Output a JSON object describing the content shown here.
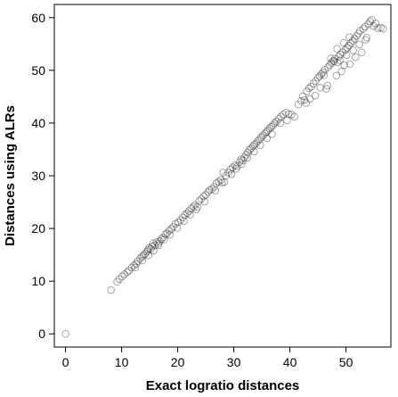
{
  "chart_data": {
    "type": "scatter",
    "title": "",
    "xlabel": "Exact logratio distances",
    "ylabel": "Distances using ALRs",
    "xlim": [
      -2,
      58
    ],
    "ylim": [
      -2.5,
      62.5
    ],
    "x_ticks": [
      0,
      10,
      20,
      30,
      40,
      50
    ],
    "y_ticks": [
      0,
      10,
      20,
      30,
      40,
      50,
      60
    ],
    "grid": false,
    "legend": "none",
    "marker": "open-circle",
    "marker_color": "#000000",
    "marker_opacity": 0.35,
    "approximate_relation": "y ≈ 1.05 · x",
    "points": [
      [
        0,
        0
      ],
      [
        8.1,
        8.3
      ],
      [
        9.2,
        9.9
      ],
      [
        9.6,
        10.4
      ],
      [
        10.1,
        10.9
      ],
      [
        10.5,
        11.3
      ],
      [
        11.0,
        11.7
      ],
      [
        11.3,
        12.0
      ],
      [
        11.8,
        12.6
      ],
      [
        12.2,
        13.0
      ],
      [
        12.6,
        13.3
      ],
      [
        12.9,
        13.8
      ],
      [
        13.3,
        14.3
      ],
      [
        13.6,
        14.6
      ],
      [
        13.9,
        14.9
      ],
      [
        14.2,
        15.2
      ],
      [
        14.5,
        15.6
      ],
      [
        14.7,
        15.9
      ],
      [
        14.9,
        16.3
      ],
      [
        15.2,
        16.1
      ],
      [
        15.4,
        16.6
      ],
      [
        15.6,
        17.2
      ],
      [
        15.9,
        16.8
      ],
      [
        16.2,
        17.4
      ],
      [
        16.5,
        17.1
      ],
      [
        16.8,
        17.6
      ],
      [
        17.1,
        18.0
      ],
      [
        17.4,
        18.3
      ],
      [
        17.8,
        18.9
      ],
      [
        18.1,
        19.1
      ],
      [
        18.5,
        19.6
      ],
      [
        18.9,
        19.9
      ],
      [
        19.2,
        20.3
      ],
      [
        19.6,
        20.9
      ],
      [
        20.1,
        21.2
      ],
      [
        20.5,
        21.6
      ],
      [
        20.9,
        22.1
      ],
      [
        21.3,
        22.6
      ],
      [
        21.7,
        22.9
      ],
      [
        22.0,
        23.3
      ],
      [
        22.4,
        23.8
      ],
      [
        22.8,
        24.1
      ],
      [
        23.1,
        24.5
      ],
      [
        23.5,
        24.1
      ],
      [
        23.8,
        25.2
      ],
      [
        24.2,
        25.6
      ],
      [
        24.6,
        26.1
      ],
      [
        25.0,
        26.4
      ],
      [
        25.4,
        26.9
      ],
      [
        25.7,
        27.3
      ],
      [
        26.1,
        27.5
      ],
      [
        26.5,
        27.9
      ],
      [
        26.9,
        28.6
      ],
      [
        27.3,
        28.9
      ],
      [
        27.7,
        29.2
      ],
      [
        28.1,
        30.6
      ],
      [
        28.3,
        28.8
      ],
      [
        28.6,
        30.0
      ],
      [
        29.0,
        30.6
      ],
      [
        29.4,
        31.2
      ],
      [
        29.8,
        31.6
      ],
      [
        30.2,
        32.0
      ],
      [
        30.6,
        31.8
      ],
      [
        31.0,
        32.6
      ],
      [
        31.3,
        33.1
      ],
      [
        31.6,
        32.9
      ],
      [
        31.9,
        33.5
      ],
      [
        32.2,
        34.0
      ],
      [
        32.5,
        34.4
      ],
      [
        32.8,
        34.9
      ],
      [
        33.1,
        35.2
      ],
      [
        33.4,
        35.6
      ],
      [
        33.7,
        35.9
      ],
      [
        34.0,
        36.2
      ],
      [
        34.3,
        36.6
      ],
      [
        34.6,
        36.9
      ],
      [
        34.9,
        37.3
      ],
      [
        35.2,
        37.6
      ],
      [
        35.5,
        38.0
      ],
      [
        35.8,
        38.3
      ],
      [
        36.1,
        38.6
      ],
      [
        36.4,
        39.0
      ],
      [
        36.7,
        39.3
      ],
      [
        37.0,
        39.6
      ],
      [
        37.3,
        40.0
      ],
      [
        37.6,
        40.3
      ],
      [
        38.0,
        40.8
      ],
      [
        38.4,
        41.2
      ],
      [
        38.8,
        41.6
      ],
      [
        39.3,
        42.0
      ],
      [
        39.8,
        41.7
      ],
      [
        40.3,
        41.6
      ],
      [
        40.8,
        41.2
      ],
      [
        41.5,
        43.5
      ],
      [
        42.0,
        44.2
      ],
      [
        42.3,
        45.1
      ],
      [
        42.6,
        44.4
      ],
      [
        43.0,
        46.0
      ],
      [
        43.4,
        46.6
      ],
      [
        43.8,
        46.9
      ],
      [
        44.2,
        47.5
      ],
      [
        44.6,
        48.0
      ],
      [
        45.0,
        48.6
      ],
      [
        45.3,
        48.9
      ],
      [
        45.6,
        49.3
      ],
      [
        45.9,
        49.6
      ],
      [
        46.2,
        50.1
      ],
      [
        46.5,
        46.5
      ],
      [
        46.7,
        47.1
      ],
      [
        46.8,
        50.6
      ],
      [
        47.1,
        51.0
      ],
      [
        47.4,
        51.4
      ],
      [
        47.7,
        51.8
      ],
      [
        48.0,
        52.2
      ],
      [
        48.3,
        49.0
      ],
      [
        48.5,
        51.5
      ],
      [
        48.7,
        52.6
      ],
      [
        49.0,
        53.0
      ],
      [
        49.2,
        49.8
      ],
      [
        49.4,
        53.4
      ],
      [
        49.7,
        51.0
      ],
      [
        49.9,
        53.9
      ],
      [
        50.2,
        54.3
      ],
      [
        50.5,
        54.7
      ],
      [
        50.7,
        51.2
      ],
      [
        50.9,
        55.2
      ],
      [
        51.2,
        55.6
      ],
      [
        51.5,
        56.0
      ],
      [
        51.7,
        52.5
      ],
      [
        51.9,
        56.5
      ],
      [
        52.2,
        57.0
      ],
      [
        52.5,
        57.5
      ],
      [
        52.8,
        53.4
      ],
      [
        53.1,
        57.9
      ],
      [
        53.4,
        58.3
      ],
      [
        53.7,
        56.2
      ],
      [
        54.0,
        58.8
      ],
      [
        54.3,
        59.3
      ],
      [
        54.6,
        59.6
      ],
      [
        54.9,
        58.4
      ],
      [
        55.3,
        58.9
      ],
      [
        55.7,
        58.0
      ],
      [
        56.2,
        58.1
      ],
      [
        56.6,
        57.9
      ],
      [
        46.1,
        49.1
      ],
      [
        47.9,
        51.7
      ],
      [
        48.9,
        51.9
      ],
      [
        50.1,
        52.9
      ],
      [
        51.3,
        53.8
      ],
      [
        52.4,
        54.9
      ],
      [
        53.5,
        55.8
      ],
      [
        49.6,
        55.2
      ],
      [
        50.6,
        56.3
      ],
      [
        48.4,
        54.1
      ],
      [
        47.3,
        52.3
      ],
      [
        45.4,
        46.7
      ],
      [
        44.5,
        45.2
      ],
      [
        43.6,
        44.6
      ],
      [
        42.9,
        43.8
      ],
      [
        36.8,
        37.9
      ],
      [
        35.9,
        37.1
      ],
      [
        34.7,
        35.8
      ],
      [
        33.6,
        34.6
      ],
      [
        32.4,
        33.4
      ],
      [
        31.4,
        32.2
      ],
      [
        30.4,
        31.3
      ],
      [
        29.6,
        30.3
      ],
      [
        26.7,
        27.2
      ],
      [
        24.8,
        25.1
      ],
      [
        23.3,
        23.6
      ],
      [
        22.2,
        22.6
      ],
      [
        21.1,
        21.4
      ],
      [
        19.9,
        20.1
      ],
      [
        18.6,
        18.8
      ],
      [
        17.6,
        17.9
      ],
      [
        16.6,
        16.8
      ],
      [
        15.7,
        15.8
      ],
      [
        14.8,
        14.9
      ],
      [
        13.7,
        13.9
      ],
      [
        12.4,
        12.6
      ],
      [
        27.9,
        28.7
      ],
      [
        38.3,
        40.0
      ],
      [
        39.5,
        40.5
      ]
    ]
  }
}
